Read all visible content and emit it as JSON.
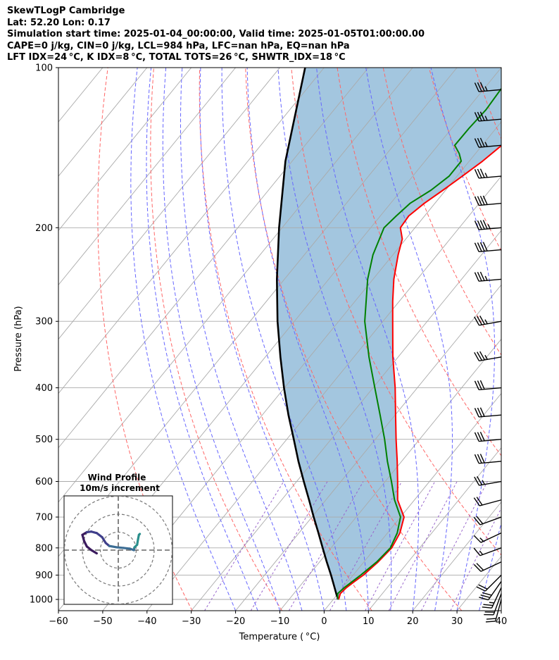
{
  "title_lines": [
    "SkewTLogP Cambridge",
    "Lat: 52.20   Lon: 0.17",
    "Simulation start time: 2025-01-04_00:00:00, Valid time: 2025-01-05T01:00:00.00",
    "CAPE=0 j/kg, CIN=0 j/kg, LCL=984 hPa, LFC=nan hPa, EQ=nan hPa",
    "LFT IDX=24 °C, K IDX=8 °C, TOTAL TOTS=26 °C, SHWTR_IDX=18 °C"
  ],
  "chart_data": {
    "type": "skew-t log-p",
    "xlabel": "Temperature ( °C)",
    "ylabel": "Pressure (hPa)",
    "xlim": [
      -60,
      40
    ],
    "ylim_hpa": [
      1050,
      100
    ],
    "x_ticks": [
      -60,
      -50,
      -40,
      -30,
      -20,
      -10,
      0,
      10,
      20,
      30,
      40
    ],
    "x_tick_labels": [
      "−60",
      "−50",
      "−40",
      "−30",
      "−20",
      "−10",
      "0",
      "10",
      "20",
      "30",
      "40"
    ],
    "y_ticks": [
      100,
      200,
      300,
      400,
      500,
      600,
      700,
      800,
      900,
      1000
    ],
    "y_tick_labels": [
      "100",
      "200",
      "300",
      "400",
      "500",
      "600",
      "700",
      "800",
      "900",
      "1000"
    ],
    "grid": true,
    "colors": {
      "temperature": "#ff0000",
      "dewpoint": "#008000",
      "parcel": "#000000",
      "shade": "#a3c6df",
      "dry_adiabats": "#ff6666",
      "moist_adiabats": "#6666ff",
      "mixing_ratio": "#9966cc",
      "isotherms": "#aaaaaa"
    },
    "series": [
      {
        "role": "temperature",
        "points": [
          [
            1000,
            1.2
          ],
          [
            975,
            0.5
          ],
          [
            950,
            0.8
          ],
          [
            925,
            1.5
          ],
          [
            900,
            2.3
          ],
          [
            850,
            3.2
          ],
          [
            800,
            3.7
          ],
          [
            750,
            2.8
          ],
          [
            700,
            0.8
          ],
          [
            650,
            -3.8
          ],
          [
            600,
            -7.2
          ],
          [
            550,
            -11.0
          ],
          [
            500,
            -15.3
          ],
          [
            450,
            -19.9
          ],
          [
            400,
            -25.0
          ],
          [
            350,
            -31.2
          ],
          [
            300,
            -37.8
          ],
          [
            275,
            -41.5
          ],
          [
            250,
            -45.3
          ],
          [
            225,
            -48.8
          ],
          [
            210,
            -50.8
          ],
          [
            200,
            -53.3
          ],
          [
            190,
            -53.6
          ],
          [
            180,
            -52.4
          ],
          [
            170,
            -50.6
          ],
          [
            160,
            -48.8
          ],
          [
            150,
            -47.0
          ],
          [
            140,
            -45.6
          ],
          [
            130,
            -44.8
          ],
          [
            120,
            -44.7
          ],
          [
            110,
            -45.3
          ],
          [
            100,
            -45.6
          ]
        ]
      },
      {
        "role": "dewpoint",
        "points": [
          [
            1000,
            1.0
          ],
          [
            975,
            -0.1
          ],
          [
            950,
            0.3
          ],
          [
            925,
            1.0
          ],
          [
            900,
            1.7
          ],
          [
            850,
            2.9
          ],
          [
            800,
            3.4
          ],
          [
            750,
            2.2
          ],
          [
            700,
            0.0
          ],
          [
            650,
            -4.5
          ],
          [
            600,
            -8.6
          ],
          [
            550,
            -13.2
          ],
          [
            500,
            -17.9
          ],
          [
            450,
            -23.4
          ],
          [
            400,
            -29.6
          ],
          [
            350,
            -36.6
          ],
          [
            300,
            -44.1
          ],
          [
            250,
            -51.2
          ],
          [
            225,
            -54.5
          ],
          [
            200,
            -57.0
          ],
          [
            190,
            -56.4
          ],
          [
            180,
            -55.6
          ],
          [
            170,
            -53.3
          ],
          [
            160,
            -51.8
          ],
          [
            150,
            -51.8
          ],
          [
            145,
            -53.7
          ],
          [
            140,
            -56.2
          ],
          [
            130,
            -56.1
          ],
          [
            120,
            -55.7
          ],
          [
            110,
            -56.1
          ],
          [
            100,
            -56.5
          ]
        ]
      },
      {
        "role": "parcel",
        "points": [
          [
            1000,
            1.2
          ],
          [
            984,
            0.1
          ],
          [
            950,
            -1.9
          ],
          [
            900,
            -5.0
          ],
          [
            850,
            -8.4
          ],
          [
            800,
            -11.9
          ],
          [
            750,
            -15.6
          ],
          [
            700,
            -19.6
          ],
          [
            650,
            -23.8
          ],
          [
            600,
            -28.4
          ],
          [
            550,
            -33.3
          ],
          [
            500,
            -38.4
          ],
          [
            450,
            -44.1
          ],
          [
            400,
            -50.1
          ],
          [
            350,
            -56.6
          ],
          [
            300,
            -63.8
          ],
          [
            250,
            -71.7
          ],
          [
            200,
            -80.7
          ],
          [
            150,
            -91.5
          ],
          [
            100,
            -104.3
          ]
        ]
      }
    ],
    "wind_barbs": [
      {
        "p": 1000,
        "speed_kt": 20,
        "dir_deg": 195
      },
      {
        "p": 975,
        "speed_kt": 20,
        "dir_deg": 200
      },
      {
        "p": 950,
        "speed_kt": 25,
        "dir_deg": 205
      },
      {
        "p": 925,
        "speed_kt": 30,
        "dir_deg": 215
      },
      {
        "p": 900,
        "speed_kt": 20,
        "dir_deg": 225
      },
      {
        "p": 850,
        "speed_kt": 20,
        "dir_deg": 245
      },
      {
        "p": 800,
        "speed_kt": 15,
        "dir_deg": 250
      },
      {
        "p": 750,
        "speed_kt": 15,
        "dir_deg": 245
      },
      {
        "p": 700,
        "speed_kt": 20,
        "dir_deg": 250
      },
      {
        "p": 650,
        "speed_kt": 20,
        "dir_deg": 255
      },
      {
        "p": 600,
        "speed_kt": 25,
        "dir_deg": 260
      },
      {
        "p": 550,
        "speed_kt": 30,
        "dir_deg": 265
      },
      {
        "p": 500,
        "speed_kt": 30,
        "dir_deg": 265
      },
      {
        "p": 450,
        "speed_kt": 30,
        "dir_deg": 265
      },
      {
        "p": 400,
        "speed_kt": 30,
        "dir_deg": 265
      },
      {
        "p": 350,
        "speed_kt": 35,
        "dir_deg": 260
      },
      {
        "p": 300,
        "speed_kt": 35,
        "dir_deg": 260
      },
      {
        "p": 250,
        "speed_kt": 35,
        "dir_deg": 265
      },
      {
        "p": 220,
        "speed_kt": 40,
        "dir_deg": 265
      },
      {
        "p": 200,
        "speed_kt": 45,
        "dir_deg": 265
      },
      {
        "p": 180,
        "speed_kt": 40,
        "dir_deg": 265
      },
      {
        "p": 160,
        "speed_kt": 35,
        "dir_deg": 265
      },
      {
        "p": 140,
        "speed_kt": 35,
        "dir_deg": 265
      },
      {
        "p": 125,
        "speed_kt": 35,
        "dir_deg": 265
      },
      {
        "p": 110,
        "speed_kt": 35,
        "dir_deg": 265
      }
    ],
    "hodograph": {
      "title": "Wind Profile",
      "subtitle": "10m/s increment",
      "ring_step_ms": 10,
      "rings": 3,
      "path_uv_ms": [
        [
          -12.0,
          -1.8
        ],
        [
          -15.0,
          0.0
        ],
        [
          -17.5,
          2.0
        ],
        [
          -19.0,
          5.0
        ],
        [
          -20.0,
          8.5
        ],
        [
          -17.5,
          10.0
        ],
        [
          -15.0,
          10.3
        ],
        [
          -12.0,
          9.5
        ],
        [
          -9.0,
          7.2
        ],
        [
          -7.0,
          4.0
        ],
        [
          -5.0,
          2.3
        ],
        [
          -1.0,
          1.6
        ],
        [
          3.0,
          1.2
        ],
        [
          6.5,
          0.8
        ],
        [
          8.7,
          0.0
        ],
        [
          9.0,
          1.5
        ],
        [
          10.5,
          3.0
        ],
        [
          11.0,
          6.0
        ],
        [
          11.5,
          8.5
        ],
        [
          12.0,
          9.0
        ]
      ],
      "path_colors": [
        "#3b1b5e",
        "#3f3e8a",
        "#3c6d94",
        "#2a8f8c"
      ]
    }
  }
}
